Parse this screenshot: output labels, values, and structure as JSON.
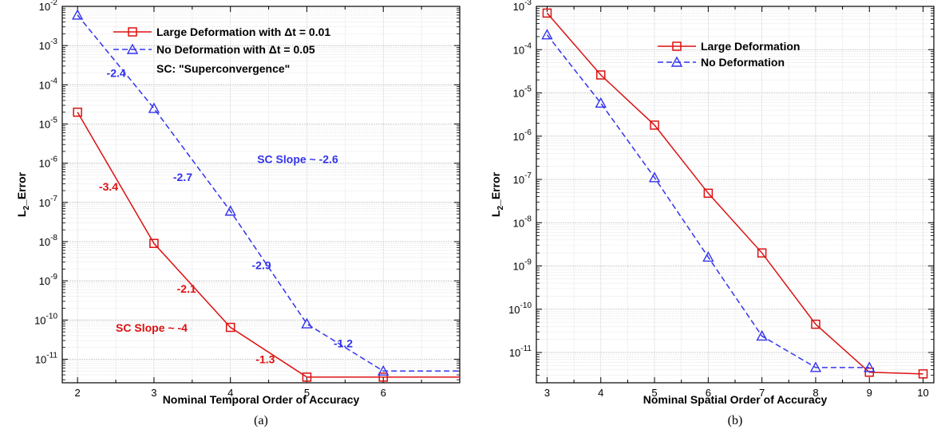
{
  "chart_data": [
    {
      "type": "line",
      "caption": "(a)",
      "xlabel": "Nominal Temporal Order of Accuracy",
      "ylabel": "L_Error",
      "ylabel_sub": "2",
      "xlim": [
        1.8,
        7
      ],
      "ylim_exp": [
        -11.6,
        -2
      ],
      "log_y": true,
      "grid": true,
      "xticks": [
        2,
        3,
        4,
        5,
        6
      ],
      "yticks_exp": [
        -11,
        -10,
        -9,
        -8,
        -7,
        -6,
        -5,
        -4,
        -3,
        -2
      ],
      "legend_placement": "top-right",
      "series": [
        {
          "name": "Large Deformation with Δt = 0.01",
          "color": "#dd1111",
          "dash": "solid",
          "marker": "square",
          "x": [
            2,
            3,
            4,
            5,
            6,
            7
          ],
          "y": [
            2e-05,
            9e-09,
            6.5e-11,
            3.5e-12,
            3.5e-12,
            3.5e-12
          ],
          "marker_x": [
            2,
            3,
            4,
            5,
            6
          ]
        },
        {
          "name": "No Deformation with Δt = 0.05",
          "color": "#3333ee",
          "dash": "dashed",
          "marker": "triangle",
          "x": [
            2,
            3,
            4,
            5,
            6,
            7
          ],
          "y": [
            0.006,
            2.5e-05,
            6e-08,
            8e-11,
            5e-12,
            5e-12
          ],
          "marker_x": [
            2,
            3,
            4,
            5,
            6
          ]
        }
      ],
      "legend_note": "SC: \"Superconvergence\"",
      "annotations": [
        {
          "text": "-2.4",
          "color": "#3333ee",
          "x": 2.38,
          "y": 0.00016
        },
        {
          "text": "-2.7",
          "color": "#3333ee",
          "x": 3.25,
          "y": 3.5e-07
        },
        {
          "text": "SC Slope ~ -2.6",
          "color": "#3333ee",
          "x": 4.35,
          "y": 1e-06
        },
        {
          "text": "-2.9",
          "color": "#3333ee",
          "x": 4.28,
          "y": 2e-09
        },
        {
          "text": "-1.2",
          "color": "#3333ee",
          "x": 5.35,
          "y": 2e-11
        },
        {
          "text": "-3.4",
          "color": "#dd1111",
          "x": 2.28,
          "y": 2e-07
        },
        {
          "text": "-2.1",
          "color": "#dd1111",
          "x": 3.3,
          "y": 5e-10
        },
        {
          "text": "SC Slope ~ -4",
          "color": "#dd1111",
          "x": 2.5,
          "y": 5e-11
        },
        {
          "text": "-1.3",
          "color": "#dd1111",
          "x": 4.33,
          "y": 8e-12
        }
      ]
    },
    {
      "type": "line",
      "caption": "(b)",
      "xlabel": "Nominal Spatial Order of Accuracy",
      "ylabel": "L_Error",
      "ylabel_sub": "2",
      "xlim": [
        2.8,
        10.2
      ],
      "ylim_exp": [
        -11.7,
        -3
      ],
      "log_y": true,
      "grid": true,
      "xticks": [
        3,
        4,
        5,
        6,
        7,
        8,
        9,
        10
      ],
      "yticks_exp": [
        -11,
        -10,
        -9,
        -8,
        -7,
        -6,
        -5,
        -4,
        -3
      ],
      "legend_placement": "top-right",
      "series": [
        {
          "name": "Large Deformation",
          "color": "#dd1111",
          "dash": "solid",
          "marker": "square",
          "x": [
            3,
            4,
            5,
            6,
            7,
            8,
            9,
            10
          ],
          "y": [
            0.0007,
            2.6e-05,
            1.8e-06,
            4.8e-08,
            2e-09,
            4.5e-11,
            3.5e-12,
            3.2e-12
          ],
          "marker_x": [
            3,
            4,
            5,
            6,
            7,
            8,
            9,
            10
          ]
        },
        {
          "name": "No Deformation",
          "color": "#3333ee",
          "dash": "dashed",
          "marker": "triangle",
          "x": [
            3,
            4,
            5,
            6,
            7,
            8,
            9
          ],
          "y": [
            0.00022,
            5.8e-06,
            1.1e-07,
            1.6e-09,
            2.4e-11,
            4.5e-12,
            4.5e-12
          ],
          "marker_x": [
            3,
            4,
            5,
            6,
            7,
            8,
            9
          ]
        }
      ],
      "annotations": []
    }
  ]
}
